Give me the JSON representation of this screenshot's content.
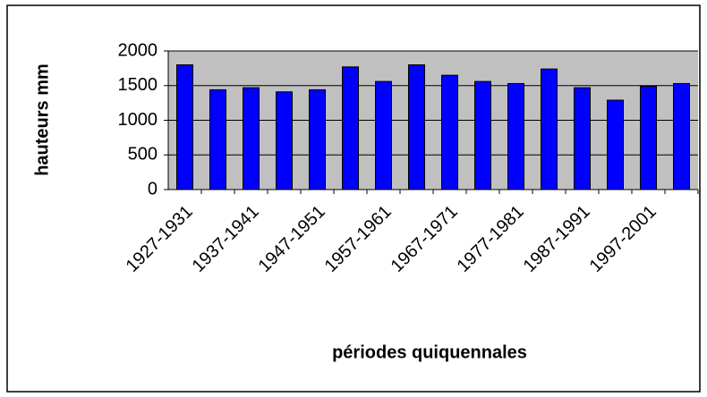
{
  "chart_data": {
    "type": "bar",
    "y_label": "hauteurs mm",
    "x_label": "périodes quiquennales",
    "categories": [
      "1927-1931",
      null,
      "1937-1941",
      null,
      "1947-1951",
      null,
      "1957-1961",
      null,
      "1967-1971",
      null,
      "1977-1981",
      null,
      "1987-1991",
      null,
      "1997-2001",
      null
    ],
    "values": [
      1800,
      1440,
      1470,
      1410,
      1440,
      1770,
      1560,
      1800,
      1650,
      1560,
      1530,
      1740,
      1470,
      1290,
      1490,
      1530
    ],
    "color": "#0000ff",
    "ylim": [
      0,
      2000
    ],
    "yticks": [
      0,
      500,
      1000,
      1500,
      2000
    ],
    "grid": true
  }
}
